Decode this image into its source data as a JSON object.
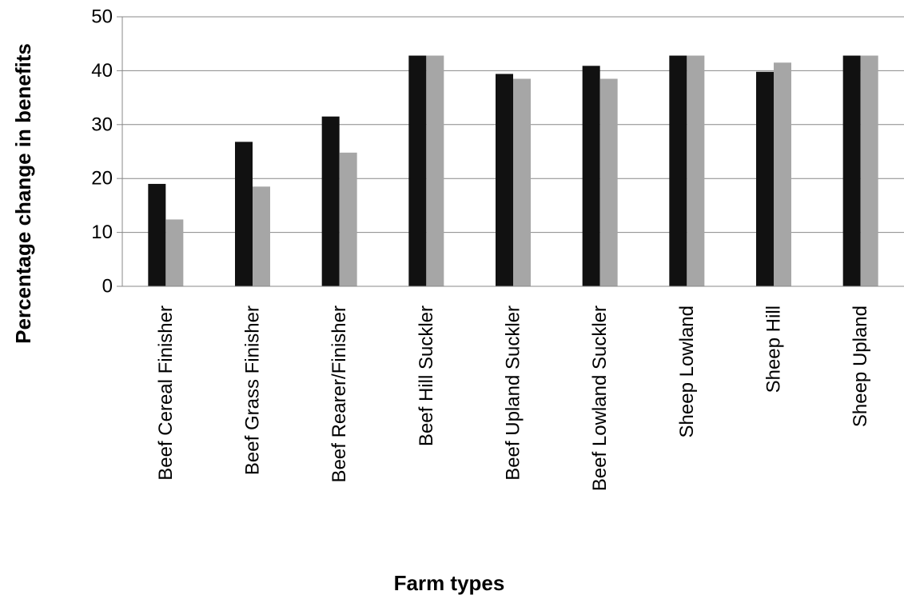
{
  "chart_data": {
    "type": "bar",
    "title": "",
    "xlabel": "Farm types",
    "ylabel": "Percentage change in benefits",
    "ylim": [
      0,
      50
    ],
    "yticks": [
      0,
      10,
      20,
      30,
      40,
      50
    ],
    "grid": true,
    "legend": "none",
    "categories": [
      "Beef Cereal Finisher",
      "Beef Grass Finisher",
      "Beef Rearer/Finisher",
      "Beef Hill Suckler",
      "Beef Upland Suckler",
      "Beef Lowland Suckler",
      "Sheep Lowland",
      "Sheep Hill",
      "Sheep Upland"
    ],
    "series": [
      {
        "values": [
          19,
          26.8,
          31.5,
          42.8,
          39.4,
          40.9,
          42.8,
          39.8,
          42.8
        ],
        "color": "#111111"
      },
      {
        "values": [
          12.4,
          18.5,
          24.8,
          42.8,
          38.5,
          38.5,
          42.8,
          41.5,
          42.8
        ],
        "color": "#a6a6a6"
      }
    ],
    "colors": {
      "grid": "#888888",
      "axis": "#888888"
    }
  }
}
